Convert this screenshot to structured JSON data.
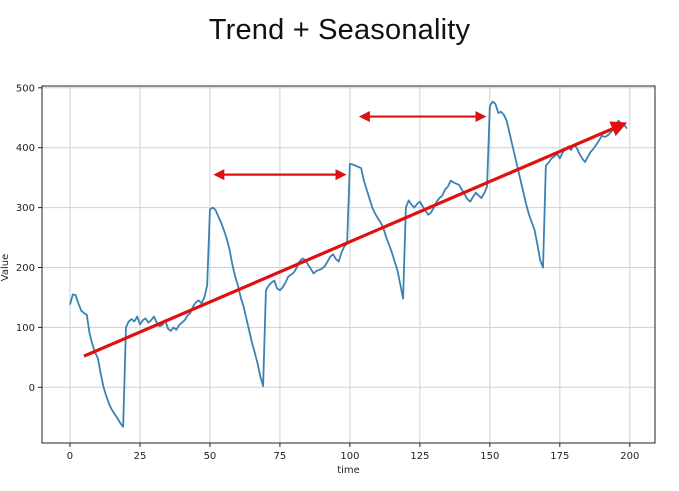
{
  "chart_data": {
    "type": "line",
    "title": "Trend + Seasonality",
    "xlabel": "time",
    "ylabel": "Value",
    "xlim": [
      -10,
      209
    ],
    "ylim": [
      -93,
      503
    ],
    "xticks": [
      0,
      25,
      50,
      75,
      100,
      125,
      150,
      175,
      200
    ],
    "yticks": [
      0,
      100,
      200,
      300,
      400,
      500
    ],
    "grid": true,
    "legend": "none",
    "series": [
      {
        "color": "#3b82b4",
        "x": [
          0,
          1,
          2,
          3,
          4,
          5,
          6,
          7,
          8,
          9,
          10,
          11,
          12,
          13,
          14,
          15,
          16,
          17,
          18,
          19,
          20,
          21,
          22,
          23,
          24,
          25,
          26,
          27,
          28,
          29,
          30,
          31,
          32,
          33,
          34,
          35,
          36,
          37,
          38,
          39,
          40,
          41,
          42,
          43,
          44,
          45,
          46,
          47,
          48,
          49,
          50,
          51,
          52,
          53,
          54,
          55,
          56,
          57,
          58,
          59,
          60,
          61,
          62,
          63,
          64,
          65,
          66,
          67,
          68,
          69,
          70,
          71,
          72,
          73,
          74,
          75,
          76,
          77,
          78,
          79,
          80,
          81,
          82,
          83,
          84,
          85,
          86,
          87,
          88,
          89,
          90,
          91,
          92,
          93,
          94,
          95,
          96,
          97,
          98,
          99,
          100,
          101,
          102,
          103,
          104,
          105,
          106,
          107,
          108,
          109,
          110,
          111,
          112,
          113,
          114,
          115,
          116,
          117,
          118,
          119,
          120,
          121,
          122,
          123,
          124,
          125,
          126,
          127,
          128,
          129,
          130,
          131,
          132,
          133,
          134,
          135,
          136,
          137,
          138,
          139,
          140,
          141,
          142,
          143,
          144,
          145,
          146,
          147,
          148,
          149,
          150,
          151,
          152,
          153,
          154,
          155,
          156,
          157,
          158,
          159,
          160,
          161,
          162,
          163,
          164,
          165,
          166,
          167,
          168,
          169,
          170,
          171,
          172,
          173,
          174,
          175,
          176,
          177,
          178,
          179,
          180,
          181,
          182,
          183,
          184,
          185,
          186,
          187,
          188,
          189,
          190,
          191,
          192,
          193,
          194,
          195,
          196,
          197,
          198,
          199
        ],
        "values": [
          138,
          155,
          154,
          140,
          128,
          124,
          121,
          90,
          72,
          58,
          48,
          22,
          0,
          -15,
          -28,
          -38,
          -45,
          -52,
          -60,
          -66,
          100,
          110,
          114,
          110,
          118,
          105,
          112,
          115,
          108,
          112,
          118,
          108,
          102,
          104,
          112,
          98,
          94,
          100,
          96,
          104,
          108,
          112,
          120,
          124,
          135,
          142,
          145,
          140,
          150,
          170,
          297,
          300,
          296,
          285,
          275,
          262,
          248,
          230,
          205,
          185,
          170,
          150,
          135,
          115,
          95,
          75,
          58,
          40,
          18,
          2,
          162,
          170,
          175,
          178,
          165,
          162,
          167,
          175,
          185,
          188,
          192,
          200,
          210,
          215,
          213,
          205,
          198,
          190,
          194,
          196,
          198,
          202,
          210,
          218,
          222,
          214,
          210,
          225,
          235,
          240,
          373,
          372,
          370,
          368,
          366,
          345,
          330,
          315,
          300,
          290,
          282,
          275,
          265,
          250,
          238,
          225,
          210,
          195,
          172,
          148,
          300,
          312,
          305,
          300,
          306,
          310,
          302,
          295,
          288,
          292,
          300,
          310,
          316,
          320,
          330,
          335,
          345,
          342,
          340,
          338,
          330,
          322,
          314,
          310,
          318,
          325,
          320,
          316,
          324,
          335,
          470,
          477,
          473,
          458,
          460,
          455,
          445,
          425,
          405,
          385,
          365,
          345,
          325,
          305,
          288,
          275,
          262,
          238,
          212,
          200,
          370,
          375,
          382,
          385,
          390,
          382,
          392,
          398,
          402,
          396,
          405,
          400,
          390,
          382,
          376,
          385,
          393,
          398,
          405,
          412,
          420,
          418,
          420,
          425,
          430,
          440,
          445,
          440,
          438,
          432
        ]
      }
    ],
    "annotations": [
      {
        "type": "double-arrow",
        "color": "#e01010",
        "x": [
          52,
          98
        ],
        "y": [
          355,
          355
        ]
      },
      {
        "type": "double-arrow",
        "color": "#e01010",
        "x": [
          104,
          148
        ],
        "y": [
          452,
          452
        ]
      },
      {
        "type": "arrow",
        "color": "#e01010",
        "x": [
          5,
          198
        ],
        "y": [
          52,
          440
        ]
      }
    ]
  }
}
